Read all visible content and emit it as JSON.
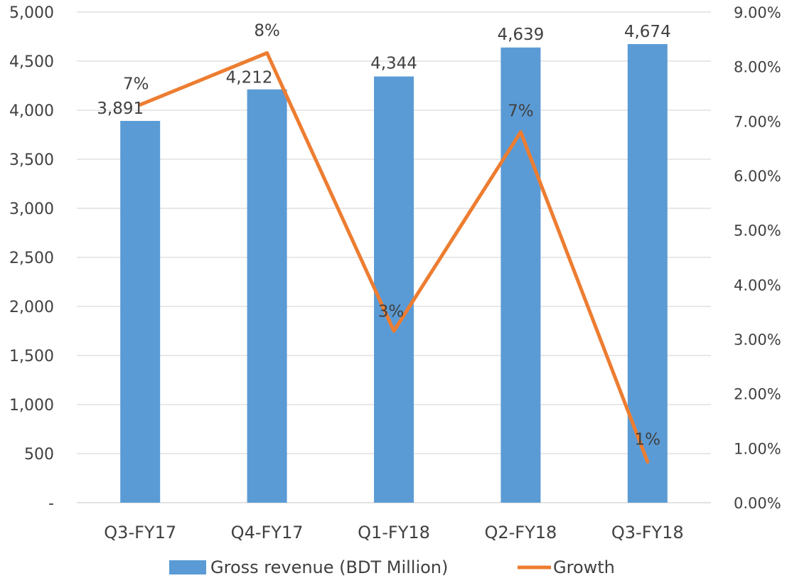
{
  "chart_data": {
    "type": "bar",
    "categories": [
      "Q3-FY17",
      "Q4-FY17",
      "Q1-FY18",
      "Q2-FY18",
      "Q3-FY18"
    ],
    "series": [
      {
        "name": "Gross revenue (BDT Million)",
        "type": "bar",
        "axis": "left",
        "values": [
          3891,
          4212,
          4344,
          4639,
          4674
        ],
        "labels": [
          "3,891",
          "4,212",
          "4,344",
          "4,639",
          "4,674"
        ],
        "color": "#5B9BD5"
      },
      {
        "name": "Growth",
        "type": "line",
        "axis": "right",
        "values": [
          0.073,
          0.0825,
          0.0315,
          0.068,
          0.0075
        ],
        "labels": [
          "7%",
          "8%",
          "3%",
          "7%",
          "1%"
        ],
        "color": "#ED7D31"
      }
    ],
    "y_left": {
      "ylim": [
        0,
        5000
      ],
      "ticks": [
        0,
        500,
        1000,
        1500,
        2000,
        2500,
        3000,
        3500,
        4000,
        4500,
        5000
      ],
      "tick_labels": [
        "-",
        "500",
        "1,000",
        "1,500",
        "2,000",
        "2,500",
        "3,000",
        "3,500",
        "4,000",
        "4,500",
        "5,000"
      ]
    },
    "y_right": {
      "ylim": [
        0,
        0.09
      ],
      "ticks": [
        0,
        0.01,
        0.02,
        0.03,
        0.04,
        0.05,
        0.06,
        0.07,
        0.08,
        0.09
      ],
      "tick_labels": [
        "0.00%",
        "1.00%",
        "2.00%",
        "3.00%",
        "4.00%",
        "5.00%",
        "6.00%",
        "7.00%",
        "8.00%",
        "9.00%"
      ]
    },
    "grid": true,
    "legend": "bottom",
    "title": "",
    "xlabel": "",
    "ylabel": ""
  }
}
